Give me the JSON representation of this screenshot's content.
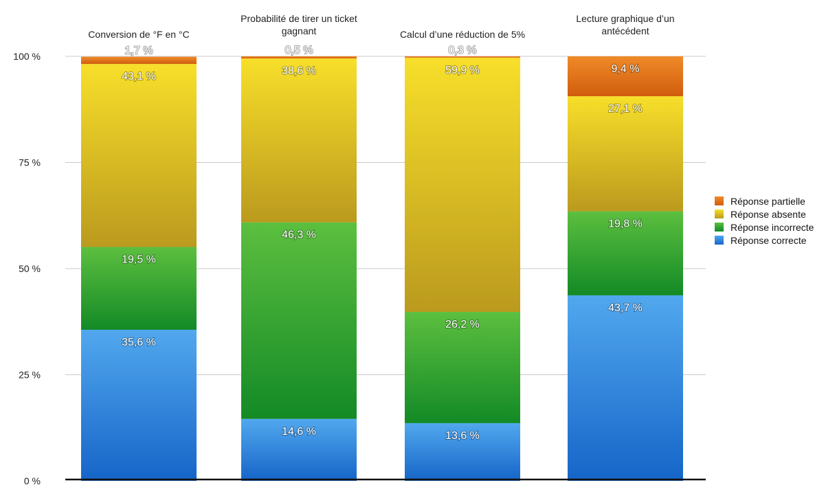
{
  "chart_data": {
    "type": "bar",
    "stacked": true,
    "categories": [
      [
        "Conversion de °F en °C"
      ],
      [
        "Probabilité de tirer un ticket",
        "gagnant"
      ],
      [
        "Calcul d’une réduction de 5%"
      ],
      [
        "Lecture graphique d’un",
        "antécédent"
      ]
    ],
    "series": [
      {
        "name": "Réponse correcte",
        "values": [
          35.6,
          14.6,
          13.6,
          43.7
        ],
        "labels": [
          "35,6 %",
          "14,6 %",
          "13,6 %",
          "43,7 %"
        ],
        "color_top": "#52a8ee",
        "color_bottom": "#1565c8"
      },
      {
        "name": "Réponse incorrecte",
        "values": [
          19.5,
          46.3,
          26.2,
          19.8
        ],
        "labels": [
          "19,5 %",
          "46,3 %",
          "26,2 %",
          "19,8 %"
        ],
        "color_top": "#5cbf3f",
        "color_bottom": "#138a26"
      },
      {
        "name": "Réponse absente",
        "values": [
          43.1,
          38.6,
          59.9,
          27.1
        ],
        "labels": [
          "43,1 %",
          "38,6 %",
          "59,9 %",
          "27,1 %"
        ],
        "color_top": "#f7df2a",
        "color_bottom": "#bb9a1e"
      },
      {
        "name": "Réponse partielle",
        "values": [
          1.7,
          0.5,
          0.3,
          9.4
        ],
        "labels": [
          "1,7 %",
          "0,5 %",
          "0,3 %",
          "9,4 %"
        ],
        "color_top": "#f08a28",
        "color_bottom": "#d05d0e"
      }
    ],
    "yticks": [
      "0 %",
      "25 %",
      "50 %",
      "75 %",
      "100 %"
    ],
    "ylim": [
      0,
      100
    ],
    "grid": true,
    "legend_position": "right",
    "legend_order": [
      "Réponse partielle",
      "Réponse absente",
      "Réponse incorrecte",
      "Réponse correcte"
    ]
  }
}
